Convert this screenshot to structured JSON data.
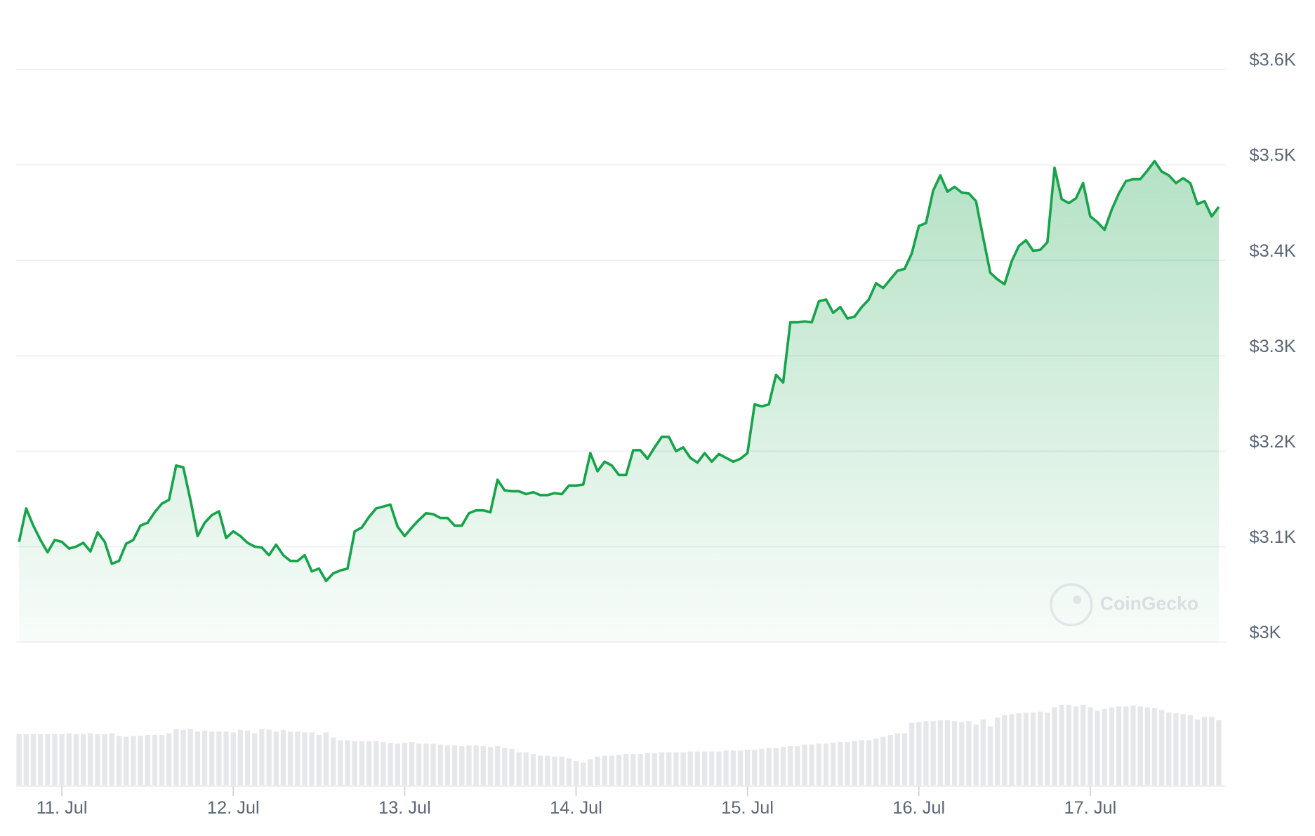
{
  "chart_data": {
    "type": "line",
    "color": "#16a34a",
    "area": true,
    "grid": true,
    "watermark": "CoinGecko",
    "ylim": [
      3000,
      3600
    ],
    "yticks": [
      {
        "value": 3000,
        "label": "$3K"
      },
      {
        "value": 3100,
        "label": "$3.1K"
      },
      {
        "value": 3200,
        "label": "$3.2K"
      },
      {
        "value": 3300,
        "label": "$3.3K"
      },
      {
        "value": 3400,
        "label": "$3.4K"
      },
      {
        "value": 3500,
        "label": "$3.5K"
      },
      {
        "value": 3600,
        "label": "$3.6K"
      }
    ],
    "categories": [
      null,
      null,
      null,
      null,
      null,
      null,
      "11. Jul",
      null,
      null,
      null,
      null,
      null,
      null,
      null,
      null,
      null,
      null,
      null,
      null,
      null,
      null,
      null,
      null,
      null,
      null,
      null,
      null,
      null,
      null,
      null,
      "12. Jul",
      null,
      null,
      null,
      null,
      null,
      null,
      null,
      null,
      null,
      null,
      null,
      null,
      null,
      null,
      null,
      null,
      null,
      null,
      null,
      null,
      null,
      null,
      null,
      "13. Jul",
      null,
      null,
      null,
      null,
      null,
      null,
      null,
      null,
      null,
      null,
      null,
      null,
      null,
      null,
      null,
      null,
      null,
      null,
      null,
      null,
      null,
      null,
      null,
      "14. Jul",
      null,
      null,
      null,
      null,
      null,
      null,
      null,
      null,
      null,
      null,
      null,
      null,
      null,
      null,
      null,
      null,
      null,
      null,
      null,
      null,
      null,
      null,
      null,
      "15. Jul",
      null,
      null,
      null,
      null,
      null,
      null,
      null,
      null,
      null,
      null,
      null,
      null,
      null,
      null,
      null,
      null,
      null,
      null,
      null,
      null,
      null,
      null,
      null,
      "16. Jul",
      null,
      null,
      null,
      null,
      null,
      null,
      null,
      null,
      null,
      null,
      null,
      null,
      null,
      null,
      null,
      null,
      null,
      null,
      null,
      null,
      null,
      null,
      null,
      "17. Jul",
      null,
      null,
      null,
      null,
      null,
      null,
      null,
      null,
      null,
      null,
      null,
      null,
      null,
      null,
      null,
      null,
      null,
      null
    ],
    "values": [
      3105,
      3140,
      3122,
      3107,
      3094,
      3107,
      3105,
      3098,
      3100,
      3104,
      3095,
      3115,
      3105,
      3082,
      3085,
      3103,
      3107,
      3122,
      3125,
      3136,
      3145,
      3149,
      3185,
      3183,
      3149,
      3111,
      3125,
      3133,
      3137,
      3109,
      3116,
      3111,
      3104,
      3100,
      3099,
      3091,
      3102,
      3091,
      3085,
      3085,
      3091,
      3074,
      3077,
      3064,
      3072,
      3075,
      3077,
      3116,
      3120,
      3131,
      3140,
      3142,
      3144,
      3121,
      3111,
      3120,
      3128,
      3135,
      3134,
      3130,
      3130,
      3122,
      3122,
      3135,
      3138,
      3138,
      3136,
      3170,
      3159,
      3158,
      3158,
      3155,
      3157,
      3154,
      3154,
      3156,
      3155,
      3164,
      3164,
      3165,
      3198,
      3179,
      3189,
      3185,
      3175,
      3175,
      3201,
      3201,
      3192,
      3204,
      3215,
      3215,
      3200,
      3204,
      3193,
      3188,
      3198,
      3189,
      3197,
      3193,
      3189,
      3192,
      3198,
      3249,
      3247,
      3249,
      3280,
      3272,
      3335,
      3335,
      3336,
      3335,
      3357,
      3359,
      3345,
      3351,
      3339,
      3341,
      3351,
      3359,
      3376,
      3371,
      3380,
      3389,
      3391,
      3407,
      3436,
      3439,
      3473,
      3489,
      3472,
      3477,
      3471,
      3470,
      3462,
      3424,
      3387,
      3380,
      3375,
      3399,
      3415,
      3421,
      3410,
      3411,
      3419,
      3497,
      3464,
      3460,
      3465,
      3481,
      3446,
      3440,
      3432,
      3453,
      3470,
      3483,
      3485,
      3485,
      3494,
      3504,
      3493,
      3489,
      3481,
      3486,
      3481,
      3459,
      3462,
      3446,
      3456
    ],
    "volume_color": "#e5e7eb",
    "volume": [
      59,
      59,
      59,
      59,
      59,
      59,
      59,
      60,
      59,
      59,
      60,
      59,
      59,
      60,
      57,
      56,
      57,
      57,
      58,
      58,
      58,
      60,
      65,
      64,
      65,
      62,
      63,
      62,
      62,
      62,
      61,
      64,
      63,
      60,
      65,
      64,
      62,
      64,
      62,
      62,
      61,
      61,
      58,
      61,
      55,
      52,
      52,
      51,
      51,
      51,
      51,
      50,
      49,
      48,
      49,
      50,
      48,
      48,
      48,
      47,
      46,
      46,
      45,
      46,
      46,
      45,
      44,
      45,
      43,
      42,
      38,
      38,
      36,
      34,
      34,
      33,
      33,
      31,
      28,
      26,
      30,
      33,
      34,
      34,
      35,
      36,
      36,
      36,
      37,
      37,
      38,
      38,
      38,
      38,
      39,
      39,
      39,
      39,
      39,
      40,
      40,
      40,
      41,
      41,
      42,
      43,
      43,
      44,
      45,
      45,
      47,
      47,
      48,
      48,
      49,
      50,
      50,
      51,
      52,
      52,
      54,
      56,
      58,
      60,
      60,
      72,
      73,
      74,
      74,
      75,
      75,
      74,
      73,
      74,
      70,
      76,
      68,
      78,
      81,
      82,
      83,
      84,
      84,
      85,
      84,
      90,
      93,
      93,
      91,
      93,
      90,
      86,
      88,
      90,
      91,
      91,
      92,
      91,
      90,
      89,
      87,
      84,
      83,
      82,
      81,
      76,
      79,
      79,
      75
    ]
  }
}
